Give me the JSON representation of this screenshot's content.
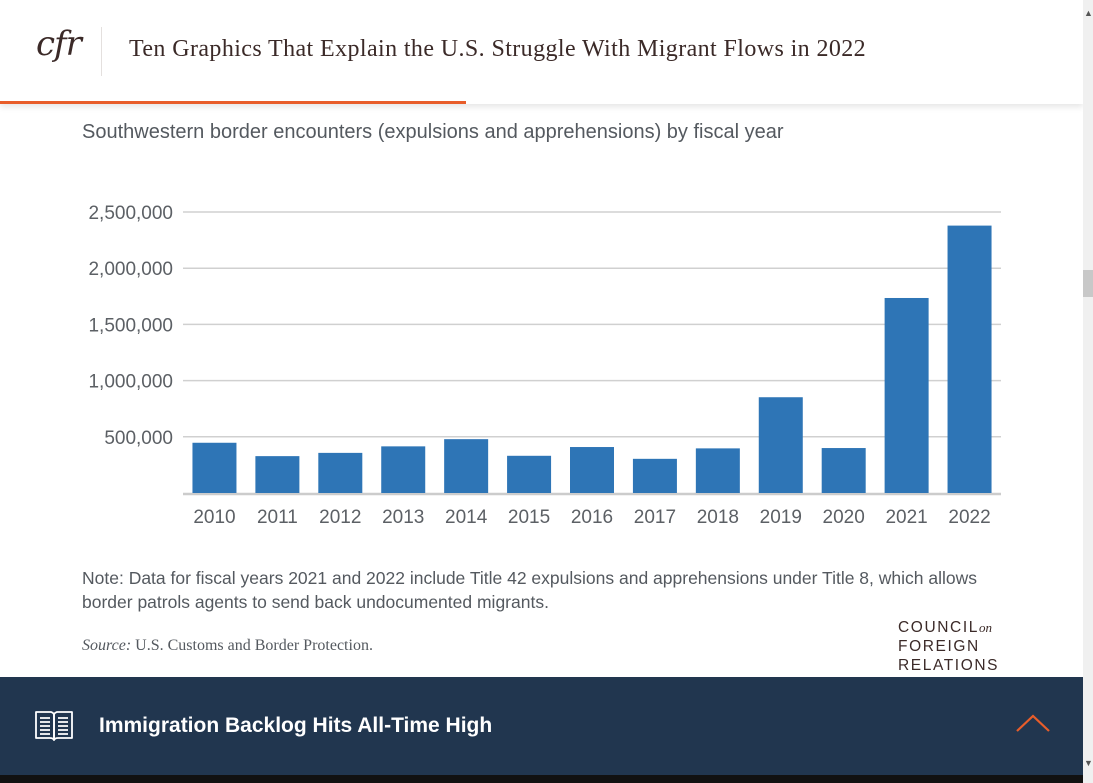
{
  "header": {
    "logo_text": "cfr",
    "title": "Ten Graphics That Explain the U.S. Struggle With Migrant Flows in 2022",
    "reading_progress_percent": 43
  },
  "colors": {
    "accent": "#e85d2a",
    "bar": "#2e75b6",
    "footer_bg": "#21364f",
    "text": "#54595f",
    "brand_text": "#3b2a28"
  },
  "chart_data": {
    "type": "bar",
    "title": "",
    "subtitle": "Southwestern border encounters (expulsions and apprehensions) by fiscal year",
    "xlabel": "",
    "ylabel": "",
    "categories": [
      "2010",
      "2011",
      "2012",
      "2013",
      "2014",
      "2015",
      "2016",
      "2017",
      "2018",
      "2019",
      "2020",
      "2021",
      "2022"
    ],
    "values": [
      447000,
      328000,
      357000,
      415000,
      479000,
      331000,
      409000,
      304000,
      397000,
      852000,
      400000,
      1735000,
      2379000
    ],
    "ylim": [
      0,
      2500000
    ],
    "yticks": [
      500000,
      1000000,
      1500000,
      2000000,
      2500000
    ],
    "ytick_labels": [
      "500,000",
      "1,000,000",
      "1,500,000",
      "2,000,000",
      "2,500,000"
    ],
    "grid": true,
    "legend": "none"
  },
  "note": "Note: Data for fiscal years 2021 and 2022 include Title 42 expulsions and apprehensions under Title 8, which allows border patrols agents to send back undocumented migrants.",
  "source": {
    "label": "Source:",
    "text": "U.S. Customs and Border Protection."
  },
  "brand_mark": {
    "line1": "COUNCIL",
    "line1_suffix": "on",
    "line2": "FOREIGN",
    "line3": "RELATIONS"
  },
  "footer": {
    "icon": "open-book-icon",
    "title": "Immigration Backlog Hits All-Time High",
    "button_icon": "chevron-up-icon"
  }
}
